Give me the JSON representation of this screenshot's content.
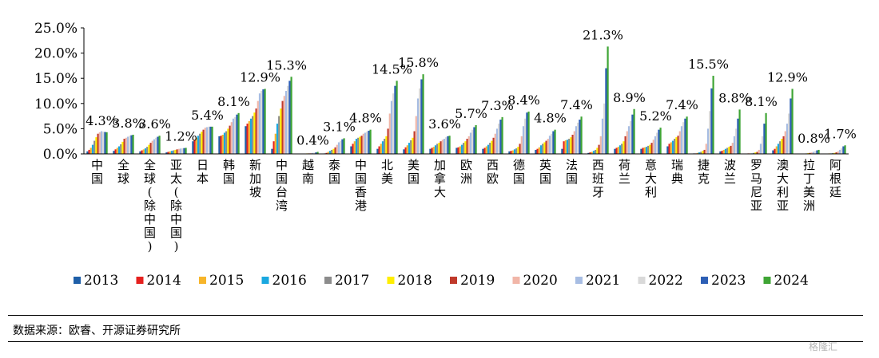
{
  "source": "数据来源：欧睿、开源证券研究所",
  "watermark": "格隆汇",
  "colors": {
    "2013": "#1f5fa8",
    "2014": "#e5201e",
    "2015": "#f7b52a",
    "2016": "#1aa8e0",
    "2017": "#8c8c8c",
    "2018": "#ffee00",
    "2019": "#c0392b",
    "2020": "#f1b6a8",
    "2021": "#a7bde3",
    "2022": "#d9d9d9",
    "2023": "#2d5fb5",
    "2024": "#3fa535"
  },
  "chart_data": {
    "type": "bar",
    "title": "",
    "xlabel": "",
    "ylabel": "",
    "ylim": [
      0,
      25
    ],
    "yticks": [
      "0.0%",
      "5.0%",
      "10.0%",
      "15.0%",
      "20.0%",
      "25.0%"
    ],
    "legend_position": "bottom",
    "categories": [
      "中国",
      "全球",
      "全球(除中国)",
      "亚太(除中国)",
      "日本",
      "韩国",
      "新加坡",
      "中国台湾",
      "越南",
      "泰国",
      "中国香港",
      "北美",
      "美国",
      "加拿大",
      "欧洲",
      "西欧",
      "德国",
      "英国",
      "法国",
      "西班牙",
      "荷兰",
      "意大利",
      "瑞典",
      "捷克",
      "波兰",
      "罗马尼亚",
      "澳大利亚",
      "拉丁美洲",
      "阿根廷"
    ],
    "labels_2024": [
      "4.3%",
      "3.8%",
      "3.6%",
      "1.2%",
      "5.4%",
      "8.1%",
      "12.9%",
      "15.3%",
      "0.4%",
      "3.1%",
      "4.8%",
      "14.5%",
      "15.8%",
      "3.6%",
      "5.7%",
      "7.3%",
      "8.4%",
      "4.8%",
      "7.4%",
      "21.3%",
      "8.9%",
      "5.2%",
      "7.4%",
      "15.5%",
      "8.8%",
      "8.1%",
      "12.9%",
      "0.8%",
      "1.7%"
    ],
    "series": [
      {
        "name": "2013",
        "values": [
          0.5,
          0.6,
          0.5,
          0.3,
          2.5,
          3.5,
          5.5,
          1.0,
          0,
          0.1,
          1.5,
          1.0,
          0.9,
          1.0,
          1.2,
          1.0,
          0.5,
          0.8,
          1.0,
          0.2,
          1.0,
          1.0,
          1.5,
          0.1,
          0.5,
          0,
          0.7,
          0,
          0.05
        ]
      },
      {
        "name": "2014",
        "values": [
          0.8,
          0.9,
          0.7,
          0.4,
          2.8,
          3.6,
          6.0,
          2.5,
          0,
          0.2,
          2.0,
          1.5,
          1.3,
          1.2,
          1.3,
          1.2,
          0.6,
          1.0,
          2.5,
          0.3,
          1.2,
          1.2,
          2.0,
          0.1,
          0.6,
          0.1,
          1.0,
          0,
          0.05
        ]
      },
      {
        "name": "2015",
        "values": [
          1.2,
          1.2,
          0.9,
          0.5,
          3.2,
          3.8,
          6.5,
          4.0,
          0,
          0.4,
          2.5,
          2.0,
          1.7,
          1.4,
          1.5,
          1.5,
          0.7,
          1.3,
          2.7,
          0.4,
          1.4,
          1.3,
          2.3,
          0.2,
          0.8,
          0.1,
          1.5,
          0,
          0.1
        ]
      },
      {
        "name": "2016",
        "values": [
          1.8,
          1.5,
          1.1,
          0.6,
          3.6,
          4.2,
          7.0,
          6.0,
          0.05,
          0.6,
          3.0,
          2.5,
          2.2,
          1.7,
          1.8,
          1.8,
          0.9,
          1.7,
          2.8,
          0.6,
          1.7,
          1.4,
          2.6,
          0.3,
          1.0,
          0.1,
          2.0,
          0.05,
          0.1
        ]
      },
      {
        "name": "2017",
        "values": [
          2.6,
          1.9,
          1.4,
          0.7,
          4.0,
          4.5,
          7.5,
          7.5,
          0.05,
          0.8,
          3.2,
          3.0,
          2.7,
          2.0,
          2.2,
          2.2,
          1.1,
          2.0,
          3.0,
          0.8,
          2.0,
          1.6,
          3.0,
          0.4,
          1.2,
          0.2,
          2.5,
          0.1,
          0.15
        ]
      },
      {
        "name": "2018",
        "values": [
          3.3,
          2.4,
          1.8,
          0.8,
          4.4,
          5.0,
          8.2,
          9.0,
          0.1,
          1.0,
          3.4,
          3.5,
          3.2,
          2.2,
          2.5,
          2.6,
          1.4,
          2.3,
          3.3,
          1.2,
          2.5,
          1.8,
          3.3,
          0.6,
          1.4,
          0.3,
          3.0,
          0.15,
          0.2
        ]
      },
      {
        "name": "2019",
        "values": [
          4.0,
          3.0,
          2.2,
          0.9,
          4.8,
          5.6,
          9.0,
          10.5,
          0.1,
          1.3,
          3.6,
          5.0,
          4.5,
          2.5,
          3.0,
          3.2,
          2.0,
          2.6,
          3.8,
          1.8,
          3.5,
          2.2,
          3.6,
          0.8,
          1.6,
          0.4,
          3.5,
          0.2,
          0.3
        ]
      },
      {
        "name": "2020",
        "values": [
          4.3,
          3.2,
          2.6,
          1.0,
          5.2,
          6.3,
          10.5,
          11.5,
          0.15,
          1.8,
          4.0,
          8.0,
          7.5,
          2.8,
          3.5,
          4.0,
          3.5,
          3.0,
          4.5,
          3.5,
          4.5,
          2.8,
          4.5,
          2.0,
          2.2,
          0.8,
          4.5,
          0.3,
          0.5
        ]
      },
      {
        "name": "2021",
        "values": [
          4.5,
          3.4,
          2.9,
          1.05,
          5.3,
          7.0,
          12.0,
          12.5,
          0.2,
          2.3,
          4.2,
          10.5,
          11.0,
          3.0,
          4.2,
          5.0,
          5.5,
          3.6,
          5.5,
          7.0,
          5.5,
          3.5,
          5.5,
          5.0,
          3.5,
          2.0,
          6.0,
          0.4,
          0.8
        ]
      },
      {
        "name": "2022",
        "values": [
          4.4,
          3.6,
          3.2,
          1.1,
          5.4,
          7.3,
          12.5,
          13.5,
          0.25,
          2.6,
          4.4,
          12.0,
          13.0,
          3.3,
          4.8,
          6.0,
          7.0,
          4.0,
          6.2,
          10.0,
          6.5,
          4.2,
          6.3,
          8.5,
          5.0,
          3.5,
          8.0,
          0.55,
          1.1
        ]
      },
      {
        "name": "2023",
        "values": [
          4.35,
          3.7,
          3.4,
          1.15,
          5.4,
          7.8,
          12.8,
          14.5,
          0.3,
          2.9,
          4.6,
          13.5,
          14.8,
          3.5,
          5.3,
          6.8,
          8.2,
          4.5,
          6.8,
          17.0,
          7.8,
          4.8,
          7.0,
          13.0,
          7.0,
          6.0,
          11.0,
          0.7,
          1.5
        ]
      },
      {
        "name": "2024",
        "values": [
          4.3,
          3.8,
          3.6,
          1.2,
          5.4,
          8.1,
          12.9,
          15.3,
          0.4,
          3.1,
          4.8,
          14.5,
          15.8,
          3.6,
          5.7,
          7.3,
          8.4,
          4.8,
          7.4,
          21.3,
          8.9,
          5.2,
          7.4,
          15.5,
          8.8,
          8.1,
          12.9,
          0.8,
          1.7
        ]
      }
    ]
  }
}
